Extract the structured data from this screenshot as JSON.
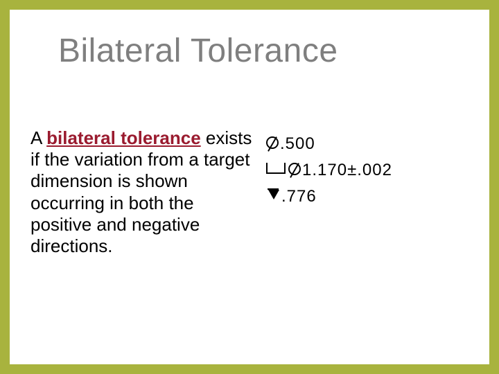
{
  "slide": {
    "border_color": "#a8b33e",
    "background_color": "#ffffff",
    "title": {
      "text": "Bilateral Tolerance",
      "color": "#7f7f7f",
      "font_size_pt": 36
    },
    "body": {
      "prefix": "A ",
      "term": "bilateral tolerance",
      "suffix": " exists if the variation from a target dimension is shown occurring in both the positive and negative directions.",
      "term_color": "#9a1b2f",
      "font_size_pt": 20
    },
    "callout": {
      "type": "engineering-dimension-callout",
      "rows": [
        {
          "symbol": "diameter",
          "value": ".500"
        },
        {
          "symbol": "counterbore",
          "value_prefix_symbol": "diameter",
          "value": "1.170",
          "tolerance": "±.002"
        },
        {
          "symbol": "depth",
          "value": ".776"
        }
      ],
      "text_color": "#000000",
      "font_size_pt": 18
    }
  }
}
